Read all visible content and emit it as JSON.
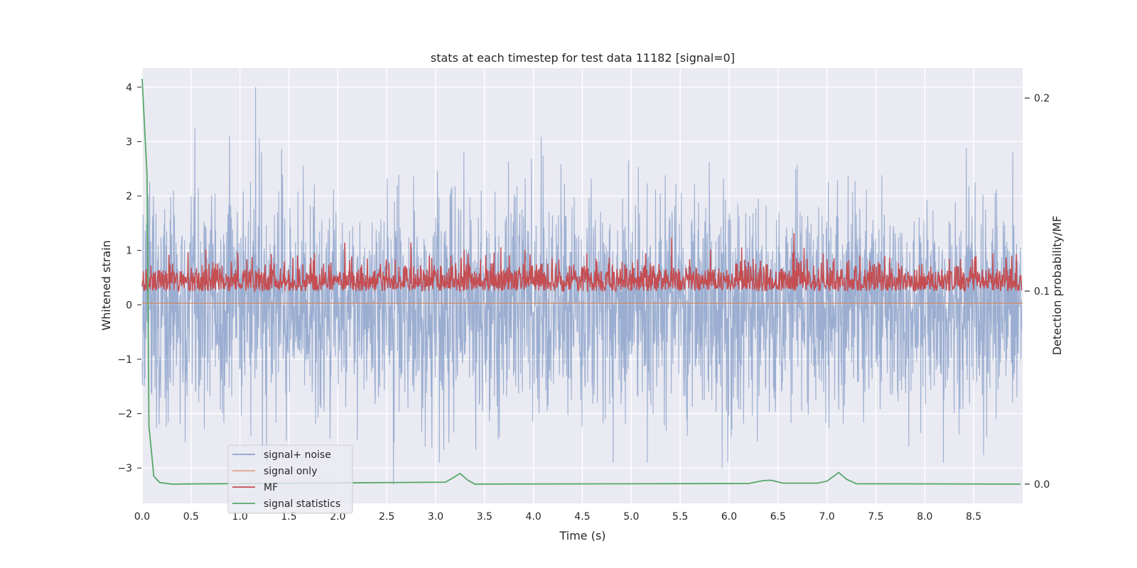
{
  "chart_data": {
    "type": "line",
    "title": "stats at each timestep for test data 11182 [signal=0]",
    "xlabel": "Time (s)",
    "ylabel": "Whitened strain",
    "y2label": "Detection probability/MF",
    "xlim": [
      0,
      9.0
    ],
    "ylim": [
      -3.65,
      4.35
    ],
    "y2lim": [
      -0.01,
      0.2155
    ],
    "x_ticks": [
      "0.0",
      "0.5",
      "1.0",
      "1.5",
      "2.0",
      "2.5",
      "3.0",
      "3.5",
      "4.0",
      "4.5",
      "5.0",
      "5.5",
      "6.0",
      "6.5",
      "7.0",
      "7.5",
      "8.0",
      "8.5"
    ],
    "y_ticks": [
      "−3",
      "−2",
      "−1",
      "0",
      "1",
      "2",
      "3",
      "4"
    ],
    "y2_ticks": [
      "0.0",
      "0.1",
      "0.2"
    ],
    "grid": true,
    "legend_position": "lower-left",
    "colors": {
      "signal_noise": "#4c72b0",
      "signal_only": "#dd8452",
      "mf": "#c44e52",
      "signal_statistics": "#55a868",
      "plot_bg": "#eaeaf2",
      "grid": "#ffffff"
    },
    "series": [
      {
        "name": "signal+ noise",
        "axis": "left",
        "description_of_values": "dense noise",
        "approx_range": [
          -3.3,
          4.0
        ],
        "notable_peaks": [
          {
            "x": 1.16,
            "y": 4.0
          },
          {
            "x": 0.54,
            "y": 3.25
          },
          {
            "x": 2.57,
            "y": -3.3
          },
          {
            "x": 5.93,
            "y": -3.0
          }
        ]
      },
      {
        "name": "signal only",
        "axis": "left",
        "values_constant": 0.03
      },
      {
        "name": "MF",
        "axis": "right",
        "approx_range": [
          0.1,
          0.13
        ]
      },
      {
        "name": "signal statistics",
        "axis": "right",
        "points": [
          [
            0.0,
            0.21
          ],
          [
            0.05,
            0.16
          ],
          [
            0.07,
            0.03
          ],
          [
            0.12,
            0.004
          ],
          [
            0.18,
            0.0008
          ],
          [
            0.3,
            0.0
          ],
          [
            3.1,
            0.001
          ],
          [
            3.17,
            0.003
          ],
          [
            3.25,
            0.0055
          ],
          [
            3.33,
            0.002
          ],
          [
            3.4,
            0.0
          ],
          [
            6.2,
            0.0003
          ],
          [
            6.35,
            0.0018
          ],
          [
            6.43,
            0.002
          ],
          [
            6.55,
            0.0005
          ],
          [
            6.9,
            0.0005
          ],
          [
            7.0,
            0.0015
          ],
          [
            7.12,
            0.006
          ],
          [
            7.2,
            0.0025
          ],
          [
            7.3,
            0.0002
          ],
          [
            8.98,
            0.0
          ]
        ]
      }
    ],
    "legend": [
      "signal+ noise",
      "signal only",
      "MF",
      "signal statistics"
    ]
  }
}
